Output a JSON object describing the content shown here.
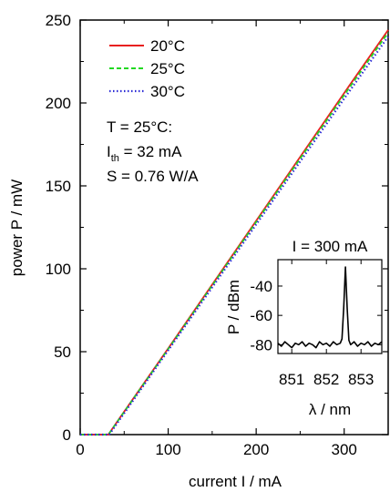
{
  "chart_data": [
    {
      "type": "line",
      "xlabel": "current I / mA",
      "ylabel": "power P / mW",
      "xlim": [
        0,
        350
      ],
      "ylim": [
        0,
        250
      ],
      "xticks": [
        0,
        100,
        200,
        300
      ],
      "yticks": [
        0,
        50,
        100,
        150,
        200,
        250
      ],
      "grid": false,
      "legend": "top-left",
      "series": [
        {
          "name": "20°C",
          "color": "#e8201f",
          "dash": "solid",
          "x": [
            0,
            30,
            32,
            40,
            100,
            200,
            300,
            350
          ],
          "y": [
            0,
            0,
            0,
            6.2,
            52,
            128.9,
            206,
            244
          ]
        },
        {
          "name": "25°C",
          "color": "#22d822",
          "dash": "dashed",
          "x": [
            0,
            30,
            32,
            40,
            100,
            200,
            300,
            350
          ],
          "y": [
            0,
            0,
            0,
            6.1,
            51.6,
            128.2,
            204.7,
            242.5
          ]
        },
        {
          "name": "30°C",
          "color": "#2b2bd6",
          "dash": "dotted",
          "x": [
            0,
            31,
            33,
            40,
            100,
            200,
            300,
            350
          ],
          "y": [
            0,
            0,
            0,
            5.3,
            50.8,
            126.7,
            202.6,
            240
          ]
        }
      ],
      "annotations": {
        "line1": "T = 25°C:",
        "line2_main": "I",
        "line2_sub": "th",
        "line2_rest": " = 32 mA",
        "line3": "S = 0.76 W/A"
      }
    },
    {
      "type": "line",
      "title": "I = 300 mA",
      "xlabel": "λ  / nm",
      "ylabel": "P / dBm",
      "xlim": [
        850.6,
        853.6
      ],
      "ylim": [
        -86,
        -22
      ],
      "xticks": [
        851,
        852,
        853
      ],
      "yticks": [
        -80,
        -60,
        -40
      ],
      "series": [
        {
          "color": "#000000",
          "x": [
            850.6,
            850.7,
            850.8,
            850.9,
            851.0,
            851.1,
            851.2,
            851.3,
            851.4,
            851.5,
            851.6,
            851.7,
            851.8,
            851.9,
            852.0,
            852.1,
            852.2,
            852.3,
            852.4,
            852.45,
            852.5,
            852.55,
            852.6,
            852.65,
            852.7,
            852.8,
            852.9,
            853.0,
            853.1,
            853.2,
            853.3,
            853.4,
            853.5,
            853.6
          ],
          "y": [
            -79,
            -81,
            -78,
            -80,
            -82,
            -79,
            -80,
            -78,
            -81,
            -79,
            -80,
            -82,
            -78,
            -80,
            -79,
            -81,
            -78,
            -80,
            -79,
            -76,
            -55,
            -27,
            -55,
            -77,
            -80,
            -78,
            -81,
            -79,
            -80,
            -78,
            -81,
            -79,
            -80,
            -78
          ]
        }
      ]
    }
  ]
}
